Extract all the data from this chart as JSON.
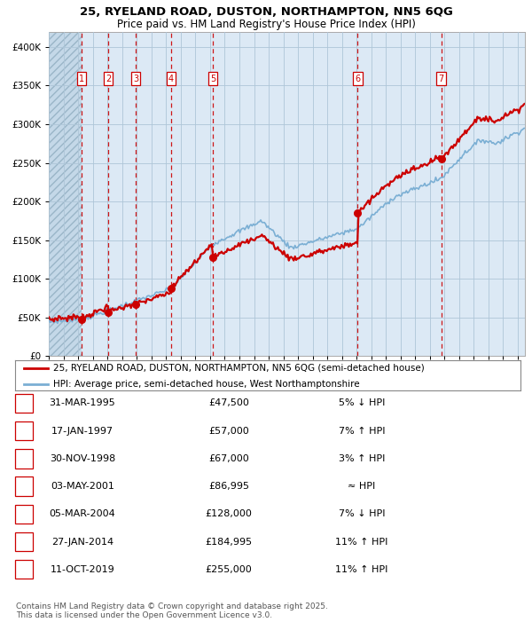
{
  "title1": "25, RYELAND ROAD, DUSTON, NORTHAMPTON, NN5 6QG",
  "title2": "Price paid vs. HM Land Registry's House Price Index (HPI)",
  "background_color": "#dce9f5",
  "grid_color": "#aec6d8",
  "sale_dates_x": [
    1995.24,
    1997.05,
    1998.92,
    2001.34,
    2004.18,
    2014.07,
    2019.78
  ],
  "sale_prices": [
    47500,
    57000,
    67000,
    86995,
    128000,
    184995,
    255000
  ],
  "sale_labels": [
    "1",
    "2",
    "3",
    "4",
    "5",
    "6",
    "7"
  ],
  "legend_line1": "25, RYELAND ROAD, DUSTON, NORTHAMPTON, NN5 6QG (semi-detached house)",
  "legend_line2": "HPI: Average price, semi-detached house, West Northamptonshire",
  "footer": "Contains HM Land Registry data © Crown copyright and database right 2025.\nThis data is licensed under the Open Government Licence v3.0.",
  "table": [
    [
      "1",
      "31-MAR-1995",
      "£47,500",
      "5% ↓ HPI"
    ],
    [
      "2",
      "17-JAN-1997",
      "£57,000",
      "7% ↑ HPI"
    ],
    [
      "3",
      "30-NOV-1998",
      "£67,000",
      "3% ↑ HPI"
    ],
    [
      "4",
      "03-MAY-2001",
      "£86,995",
      "≈ HPI"
    ],
    [
      "5",
      "05-MAR-2004",
      "£128,000",
      "7% ↓ HPI"
    ],
    [
      "6",
      "27-JAN-2014",
      "£184,995",
      "11% ↑ HPI"
    ],
    [
      "7",
      "11-OCT-2019",
      "£255,000",
      "11% ↑ HPI"
    ]
  ],
  "red_color": "#cc0000",
  "blue_color": "#7bafd4",
  "ylim": [
    0,
    420000
  ],
  "xlim_start": 1993.0,
  "xlim_end": 2025.5,
  "fig_width": 6.0,
  "fig_height": 7.1,
  "dpi": 100
}
